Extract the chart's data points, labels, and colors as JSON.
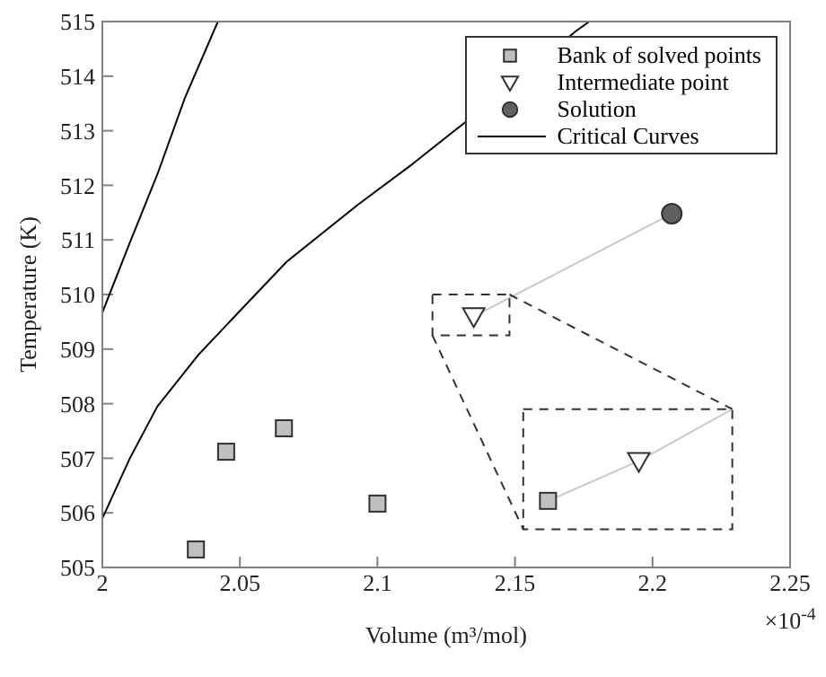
{
  "chart_data": {
    "type": "scatter",
    "xlabel": "Volume (m³/mol)",
    "ylabel": "Temperature (K)",
    "annotations": [
      "×10$^{-4}$"
    ],
    "xlim": [
      2,
      2.25
    ],
    "xticks": [
      2,
      2.05,
      2.1,
      2.15,
      2.2,
      2.25
    ],
    "ylim": [
      505,
      515
    ],
    "yticks": [
      505,
      506,
      507,
      508,
      509,
      510,
      511,
      512,
      513,
      514,
      515
    ],
    "grid": false,
    "legend": "top right",
    "series": [
      {
        "name": "Bank of solved points",
        "marker": "square",
        "color": "#c0c0c0",
        "x": [
          2.034,
          2.045,
          2.066,
          2.1,
          2.162
        ],
        "values": [
          505.33,
          507.12,
          507.55,
          506.17,
          506.22
        ]
      },
      {
        "name": "Intermediate point",
        "marker": "triangle",
        "color": "#ffffff",
        "x": [
          2.135,
          2.195
        ],
        "values": [
          509.6,
          506.95
        ]
      },
      {
        "name": "Solution",
        "marker": "circle",
        "color": "#606060",
        "x": [
          2.207
        ],
        "values": [
          511.48
        ]
      },
      {
        "name": "Critical Curves",
        "type": "line",
        "marker": "none",
        "color": "#000000",
        "x": [
          2,
          2.01,
          2.02,
          2.03,
          2.042
        ],
        "values": [
          509.67,
          510.95,
          512.2,
          513.6,
          515
        ]
      },
      {
        "type": "line",
        "marker": "none",
        "color": "#000000",
        "x": [
          2,
          2.01,
          2.02,
          2.035,
          2.05,
          2.067,
          2.093,
          2.113,
          2.133,
          2.15,
          2.172,
          2.177
        ],
        "values": [
          505.9,
          507.0,
          507.95,
          508.9,
          509.7,
          510.6,
          511.65,
          512.4,
          513.2,
          null,
          514.82,
          515
        ]
      },
      {
        "type": "line",
        "marker": "none",
        "color": "#c8c8c8",
        "x": [
          2.135,
          2.207
        ],
        "values": [
          509.6,
          511.48
        ]
      },
      {
        "type": "line",
        "marker": "none",
        "color": "#c8c8c8",
        "x": [
          2.162,
          2.195,
          2.229
        ],
        "values": [
          506.22,
          506.95,
          507.9
        ]
      }
    ]
  }
}
